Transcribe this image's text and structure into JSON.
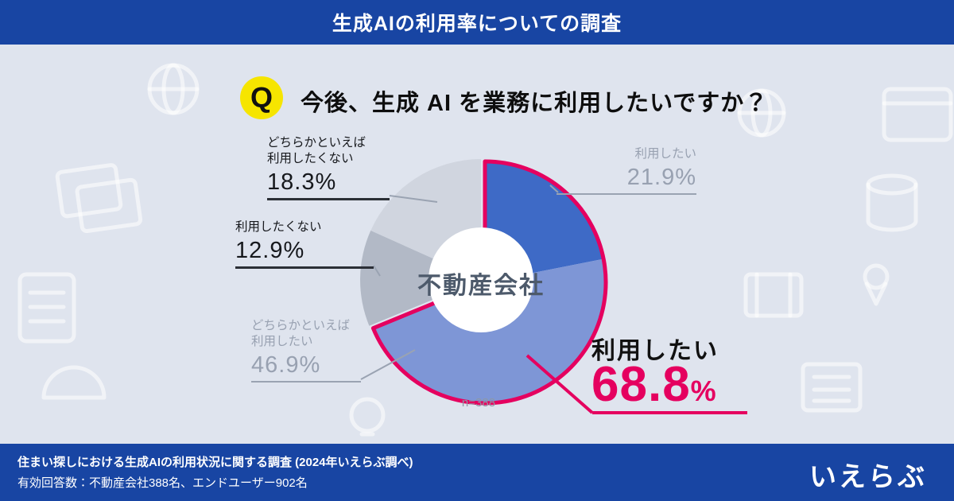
{
  "header": {
    "title": "生成AIの利用率についての調査"
  },
  "question": {
    "badge": "Q",
    "text": "今後、生成 AI を業務に利用したいですか？"
  },
  "chart_data": {
    "type": "pie",
    "center_label": "不動産会社",
    "sample_size": "n=388",
    "unit": "%",
    "categories": [
      "利用したい",
      "どちらかといえば利用したい",
      "利用したくない",
      "どちらかといえば利用したくない"
    ],
    "values": [
      21.9,
      46.9,
      12.9,
      18.3
    ],
    "combined_highlight": {
      "label": "利用したい",
      "value": 68.8
    },
    "colors": {
      "want": "#3e6ac6",
      "somewhat_want": "#7e96d6",
      "not_want": "#b2b9c6",
      "somewhat_not_want": "#d0d5df",
      "highlight": "#e5005f"
    },
    "legend_position": "callouts",
    "start_angle_deg": 0
  },
  "callouts": {
    "somewhat_not_want": {
      "line1": "どちらかといえば",
      "line2": "利用したくない",
      "value": "18.3%"
    },
    "not_want": {
      "line1": "利用したくない",
      "value": "12.9%"
    },
    "somewhat_want": {
      "line1": "どちらかといえば",
      "line2": "利用したい",
      "value": "46.9%"
    },
    "want": {
      "line1": "利用したい",
      "value": "21.9%"
    },
    "combined": {
      "label": "利用したい",
      "value": "68.8",
      "unit": "%"
    }
  },
  "footer": {
    "line1": "住まい探しにおける生成AIの利用状況に関する調査 (2024年いえらぶ調べ)",
    "line2": "有効回答数：不動産会社388名、エンドユーザー902名",
    "logo": "いえらぶ"
  },
  "theme": {
    "bar_blue": "#1845a3",
    "background": "#dfe4ee",
    "accent_pink": "#e5005f",
    "q_yellow": "#f6e500"
  }
}
